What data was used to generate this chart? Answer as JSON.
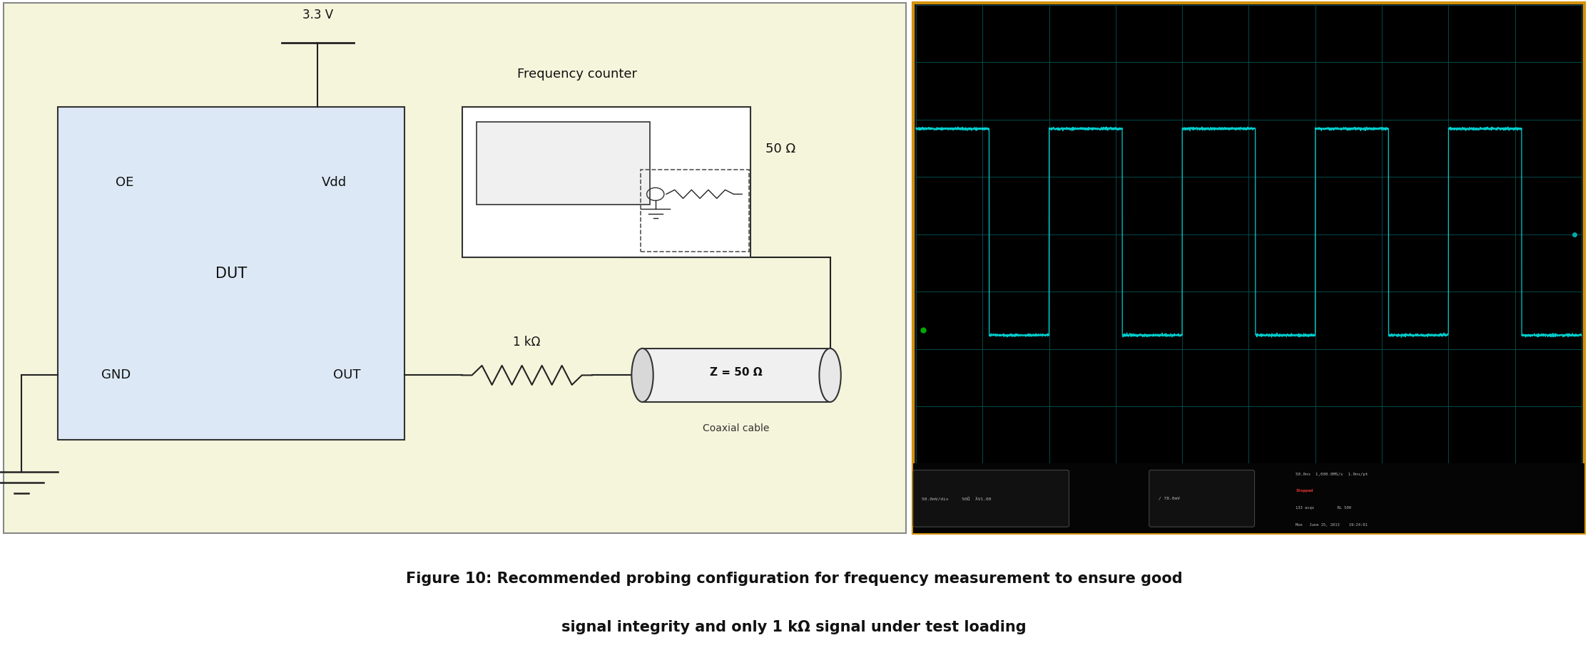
{
  "fig_width": 22.26,
  "fig_height": 9.4,
  "background_color": "#ffffff",
  "diagram_bg": "#f5f5dc",
  "dut_bg": "#dce8f5",
  "scope_bg": "#000000",
  "scope_border": "#c8a000",
  "scope_grid_color": "#005555",
  "scope_trace_color": "#00cccc",
  "caption_line1": "Figure 10: Recommended probing configuration for frequency measurement to ensure good",
  "caption_line2": "signal integrity and only 1 kΩ signal under test loading",
  "caption_fontsize": 15,
  "dut_label": "DUT",
  "oe_label": "OE",
  "vdd_label": "Vdd",
  "gnd_label": "GND",
  "out_label": "OUT",
  "r_label": "1 kΩ",
  "coax_label": "Z = 50 Ω",
  "coax_sub": "Coaxial cable",
  "fc_label": "Frequency counter",
  "fc_r_label": "50 Ω",
  "v33_label": "3.3 V",
  "scope_info1": "50.0mV/div     50Ω  λV1.00",
  "scope_info2": "/ 78.0mV",
  "scope_info3": "50.0ns  1,000.0MS/s  1.0ns/pt",
  "scope_info4": "Stopped",
  "scope_info5": "133 acqs          RL 500",
  "scope_info6": "Mon   June 25, 2013    19:24:01"
}
